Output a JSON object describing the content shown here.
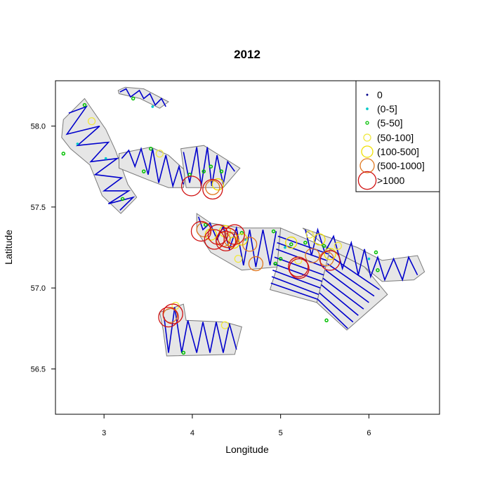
{
  "chart_data": {
    "type": "scatter",
    "title": "2012",
    "xlabel": "Longitude",
    "ylabel": "Latitude",
    "xlim": [
      2.45,
      6.8
    ],
    "ylim": [
      56.22,
      58.28
    ],
    "xticks": [
      3,
      4,
      5,
      6
    ],
    "xtick_labels": [
      "3",
      "4",
      "5",
      "6"
    ],
    "yticks": [
      56.5,
      57.0,
      57.5,
      58.0
    ],
    "ytick_labels": [
      "56.5",
      "57.0",
      "57.5",
      "58.0"
    ],
    "grid": false,
    "legend_position": "top-right",
    "colors": {
      "polygon_fill": "#e6e6e6",
      "polygon_edge": "#7a7a7a",
      "transect": "#0000cc"
    },
    "legend": [
      {
        "label": "0",
        "class": "c0",
        "color": "#00008b"
      },
      {
        "label": "(0-5]",
        "class": "c1",
        "color": "#00c8c8"
      },
      {
        "label": "(5-50]",
        "class": "c2",
        "color": "#00c000"
      },
      {
        "label": "(50-100]",
        "class": "c3",
        "color": "#f0e840"
      },
      {
        "label": "(100-500]",
        "class": "c4",
        "color": "#f0e000"
      },
      {
        "label": "(500-1000]",
        "class": "c5",
        "color": "#e07820"
      },
      {
        "label": ">1000",
        "class": "c6",
        "color": "#d01010"
      }
    ],
    "strata": [
      [
        [
          2.54,
          58.04
        ],
        [
          2.78,
          58.17
        ],
        [
          3.02,
          57.98
        ],
        [
          3.13,
          57.85
        ],
        [
          3.27,
          57.64
        ],
        [
          3.37,
          57.56
        ],
        [
          3.19,
          57.46
        ],
        [
          2.98,
          57.57
        ],
        [
          2.84,
          57.76
        ],
        [
          2.62,
          57.86
        ],
        [
          2.52,
          57.93
        ]
      ],
      [
        [
          3.16,
          58.22
        ],
        [
          3.24,
          58.24
        ],
        [
          3.45,
          58.23
        ],
        [
          3.73,
          58.15
        ],
        [
          3.63,
          58.11
        ],
        [
          3.41,
          58.17
        ],
        [
          3.17,
          58.2
        ]
      ],
      [
        [
          3.17,
          57.83
        ],
        [
          3.53,
          57.87
        ],
        [
          3.73,
          57.82
        ],
        [
          3.93,
          57.72
        ],
        [
          3.9,
          57.62
        ],
        [
          3.73,
          57.62
        ],
        [
          3.49,
          57.67
        ],
        [
          3.17,
          57.74
        ]
      ],
      [
        [
          3.87,
          57.86
        ],
        [
          4.13,
          57.88
        ],
        [
          4.54,
          57.74
        ],
        [
          4.35,
          57.62
        ],
        [
          3.93,
          57.62
        ]
      ],
      [
        [
          4.05,
          57.46
        ],
        [
          4.21,
          57.4
        ],
        [
          4.56,
          57.37
        ],
        [
          5.0,
          57.37
        ],
        [
          4.96,
          57.13
        ],
        [
          4.56,
          57.11
        ],
        [
          4.21,
          57.22
        ],
        [
          4.05,
          57.35
        ]
      ],
      [
        [
          5.0,
          57.37
        ],
        [
          5.56,
          57.24
        ],
        [
          5.41,
          56.91
        ],
        [
          4.88,
          56.99
        ],
        [
          4.96,
          57.13
        ]
      ],
      [
        [
          5.25,
          57.37
        ],
        [
          5.87,
          57.25
        ],
        [
          6.15,
          57.17
        ],
        [
          6.55,
          57.2
        ],
        [
          6.63,
          57.1
        ],
        [
          6.51,
          57.05
        ],
        [
          6.15,
          57.04
        ],
        [
          5.95,
          57.13
        ],
        [
          5.56,
          57.24
        ]
      ],
      [
        [
          5.56,
          57.24
        ],
        [
          5.95,
          57.13
        ],
        [
          6.21,
          56.96
        ],
        [
          5.75,
          56.74
        ],
        [
          5.41,
          56.91
        ]
      ],
      [
        [
          3.63,
          56.85
        ],
        [
          3.9,
          56.9
        ],
        [
          3.93,
          56.8
        ],
        [
          4.37,
          56.79
        ],
        [
          4.56,
          56.76
        ],
        [
          4.48,
          56.59
        ],
        [
          3.71,
          56.58
        ],
        [
          3.67,
          56.74
        ]
      ]
    ],
    "transects": [
      [
        [
          2.6,
          58.08
        ],
        [
          2.8,
          58.12
        ],
        [
          2.58,
          57.95
        ],
        [
          2.95,
          58.0
        ],
        [
          2.7,
          57.88
        ],
        [
          3.05,
          57.9
        ],
        [
          2.85,
          57.78
        ],
        [
          3.15,
          57.8
        ],
        [
          2.9,
          57.7
        ],
        [
          3.2,
          57.68
        ],
        [
          3.0,
          57.6
        ],
        [
          3.28,
          57.6
        ],
        [
          3.05,
          57.52
        ],
        [
          3.33,
          57.56
        ],
        [
          3.18,
          57.48
        ]
      ],
      [
        [
          3.18,
          58.21
        ],
        [
          3.25,
          58.23
        ],
        [
          3.3,
          58.18
        ],
        [
          3.4,
          58.22
        ],
        [
          3.45,
          58.17
        ],
        [
          3.52,
          58.2
        ],
        [
          3.58,
          58.13
        ],
        [
          3.65,
          58.17
        ],
        [
          3.7,
          58.12
        ]
      ],
      [
        [
          3.2,
          57.8
        ],
        [
          3.28,
          57.85
        ],
        [
          3.35,
          57.75
        ],
        [
          3.42,
          57.86
        ],
        [
          3.5,
          57.7
        ],
        [
          3.55,
          57.86
        ],
        [
          3.62,
          57.65
        ],
        [
          3.7,
          57.82
        ],
        [
          3.78,
          57.63
        ],
        [
          3.85,
          57.75
        ],
        [
          3.9,
          57.64
        ]
      ],
      [
        [
          3.9,
          57.84
        ],
        [
          3.97,
          57.65
        ],
        [
          4.05,
          57.87
        ],
        [
          4.1,
          57.63
        ],
        [
          4.17,
          57.87
        ],
        [
          4.22,
          57.63
        ],
        [
          4.28,
          57.82
        ],
        [
          4.35,
          57.64
        ],
        [
          4.4,
          57.78
        ],
        [
          4.48,
          57.72
        ]
      ],
      [
        [
          4.07,
          57.44
        ],
        [
          4.12,
          57.36
        ],
        [
          4.2,
          57.4
        ],
        [
          4.28,
          57.3
        ],
        [
          4.35,
          57.38
        ],
        [
          4.42,
          57.24
        ],
        [
          4.5,
          57.37
        ],
        [
          4.58,
          57.14
        ],
        [
          4.65,
          57.36
        ],
        [
          4.72,
          57.13
        ],
        [
          4.8,
          57.36
        ],
        [
          4.88,
          57.14
        ],
        [
          4.95,
          57.35
        ]
      ],
      [
        [
          4.97,
          57.32
        ],
        [
          5.54,
          57.21
        ]
      ],
      [
        [
          4.96,
          57.28
        ],
        [
          5.52,
          57.17
        ]
      ],
      [
        [
          4.95,
          57.24
        ],
        [
          5.5,
          57.13
        ]
      ],
      [
        [
          4.93,
          57.19
        ],
        [
          5.49,
          57.08
        ]
      ],
      [
        [
          4.92,
          57.15
        ],
        [
          5.47,
          57.04
        ]
      ],
      [
        [
          4.91,
          57.11
        ],
        [
          5.45,
          57.0
        ]
      ],
      [
        [
          4.9,
          57.07
        ],
        [
          5.43,
          56.96
        ]
      ],
      [
        [
          4.89,
          57.03
        ],
        [
          5.42,
          56.93
        ]
      ],
      [
        [
          5.28,
          57.36
        ],
        [
          5.35,
          57.2
        ],
        [
          5.42,
          57.36
        ],
        [
          5.5,
          57.22
        ],
        [
          5.6,
          57.32
        ],
        [
          5.7,
          57.12
        ],
        [
          5.8,
          57.28
        ],
        [
          5.88,
          57.08
        ],
        [
          5.95,
          57.24
        ],
        [
          6.02,
          57.07
        ],
        [
          6.1,
          57.19
        ],
        [
          6.18,
          57.05
        ],
        [
          6.28,
          57.18
        ],
        [
          6.38,
          57.05
        ],
        [
          6.45,
          57.19
        ],
        [
          6.55,
          57.08
        ]
      ],
      [
        [
          5.55,
          57.2
        ],
        [
          6.12,
          56.99
        ]
      ],
      [
        [
          5.53,
          57.15
        ],
        [
          6.06,
          56.95
        ]
      ],
      [
        [
          5.51,
          57.11
        ],
        [
          6.0,
          56.91
        ]
      ],
      [
        [
          5.48,
          57.06
        ],
        [
          5.94,
          56.87
        ]
      ],
      [
        [
          5.46,
          57.02
        ],
        [
          5.88,
          56.83
        ]
      ],
      [
        [
          5.44,
          56.97
        ],
        [
          5.82,
          56.79
        ]
      ],
      [
        [
          5.42,
          56.93
        ],
        [
          5.76,
          56.75
        ]
      ],
      [
        [
          3.68,
          56.82
        ],
        [
          3.73,
          56.6
        ],
        [
          3.8,
          56.88
        ],
        [
          3.88,
          56.6
        ],
        [
          3.95,
          56.8
        ],
        [
          4.05,
          56.6
        ],
        [
          4.12,
          56.79
        ],
        [
          4.2,
          56.6
        ],
        [
          4.27,
          56.79
        ],
        [
          4.35,
          56.6
        ],
        [
          4.42,
          56.78
        ],
        [
          4.5,
          56.62
        ]
      ]
    ],
    "points": [
      {
        "lon": 2.7,
        "lat": 57.89,
        "class": "c1"
      },
      {
        "lon": 3.02,
        "lat": 57.8,
        "class": "c1"
      },
      {
        "lon": 3.55,
        "lat": 58.12,
        "class": "c1"
      },
      {
        "lon": 4.6,
        "lat": 57.3,
        "class": "c1"
      },
      {
        "lon": 5.05,
        "lat": 57.25,
        "class": "c1"
      },
      {
        "lon": 6.0,
        "lat": 57.18,
        "class": "c1"
      },
      {
        "lon": 2.54,
        "lat": 57.83,
        "class": "c2"
      },
      {
        "lon": 2.78,
        "lat": 58.13,
        "class": "c2"
      },
      {
        "lon": 3.33,
        "lat": 58.17,
        "class": "c2"
      },
      {
        "lon": 3.45,
        "lat": 57.72,
        "class": "c2"
      },
      {
        "lon": 3.53,
        "lat": 57.86,
        "class": "c2"
      },
      {
        "lon": 4.13,
        "lat": 57.72,
        "class": "c2"
      },
      {
        "lon": 4.33,
        "lat": 57.72,
        "class": "c2"
      },
      {
        "lon": 4.21,
        "lat": 57.75,
        "class": "c2"
      },
      {
        "lon": 4.15,
        "lat": 57.39,
        "class": "c2"
      },
      {
        "lon": 4.56,
        "lat": 57.34,
        "class": "c2"
      },
      {
        "lon": 4.92,
        "lat": 57.35,
        "class": "c2"
      },
      {
        "lon": 5.12,
        "lat": 57.27,
        "class": "c2"
      },
      {
        "lon": 5.49,
        "lat": 57.26,
        "class": "c2"
      },
      {
        "lon": 5.28,
        "lat": 57.28,
        "class": "c2"
      },
      {
        "lon": 4.94,
        "lat": 57.15,
        "class": "c2"
      },
      {
        "lon": 6.1,
        "lat": 57.11,
        "class": "c2"
      },
      {
        "lon": 6.08,
        "lat": 57.22,
        "class": "c2"
      },
      {
        "lon": 5.52,
        "lat": 56.8,
        "class": "c2"
      },
      {
        "lon": 3.9,
        "lat": 56.6,
        "class": "c2"
      },
      {
        "lon": 3.21,
        "lat": 57.55,
        "class": "c2"
      },
      {
        "lon": 5.0,
        "lat": 57.18,
        "class": "c2"
      },
      {
        "lon": 3.97,
        "lat": 57.7,
        "class": "c2"
      },
      {
        "lon": 3.63,
        "lat": 57.83,
        "class": "c3"
      },
      {
        "lon": 4.52,
        "lat": 57.18,
        "class": "c3"
      },
      {
        "lon": 5.65,
        "lat": 57.26,
        "class": "c3"
      },
      {
        "lon": 4.37,
        "lat": 56.77,
        "class": "c3"
      },
      {
        "lon": 3.81,
        "lat": 56.89,
        "class": "c3"
      },
      {
        "lon": 2.86,
        "lat": 58.03,
        "class": "c3"
      },
      {
        "lon": 5.33,
        "lat": 57.33,
        "class": "c3"
      },
      {
        "lon": 5.2,
        "lat": 57.17,
        "class": "c3"
      },
      {
        "lon": 4.37,
        "lat": 57.35,
        "class": "c4"
      },
      {
        "lon": 4.47,
        "lat": 57.28,
        "class": "c4"
      },
      {
        "lon": 5.12,
        "lat": 57.28,
        "class": "c4"
      },
      {
        "lon": 5.44,
        "lat": 57.3,
        "class": "c4"
      },
      {
        "lon": 5.56,
        "lat": 57.21,
        "class": "c4"
      },
      {
        "lon": 4.29,
        "lat": 57.64,
        "class": "c4"
      },
      {
        "lon": 4.56,
        "lat": 57.3,
        "class": "c4"
      },
      {
        "lon": 4.21,
        "lat": 57.33,
        "class": "c4"
      },
      {
        "lon": 4.13,
        "lat": 57.36,
        "class": "c5"
      },
      {
        "lon": 4.35,
        "lat": 57.3,
        "class": "c5"
      },
      {
        "lon": 4.65,
        "lat": 57.27,
        "class": "c5"
      },
      {
        "lon": 4.72,
        "lat": 57.15,
        "class": "c5"
      },
      {
        "lon": 5.36,
        "lat": 57.2,
        "class": "c5"
      },
      {
        "lon": 5.52,
        "lat": 57.18,
        "class": "c5"
      },
      {
        "lon": 3.75,
        "lat": 56.83,
        "class": "c5"
      },
      {
        "lon": 4.23,
        "lat": 57.62,
        "class": "c5"
      },
      {
        "lon": 4.44,
        "lat": 57.3,
        "class": "c5"
      },
      {
        "lon": 3.99,
        "lat": 57.63,
        "class": "c6"
      },
      {
        "lon": 4.23,
        "lat": 57.61,
        "class": "c6"
      },
      {
        "lon": 4.1,
        "lat": 57.35,
        "class": "c6"
      },
      {
        "lon": 4.29,
        "lat": 57.33,
        "class": "c6"
      },
      {
        "lon": 4.25,
        "lat": 57.3,
        "class": "c6"
      },
      {
        "lon": 4.4,
        "lat": 57.31,
        "class": "c6"
      },
      {
        "lon": 4.48,
        "lat": 57.33,
        "class": "c6"
      },
      {
        "lon": 4.38,
        "lat": 57.29,
        "class": "c6"
      },
      {
        "lon": 5.2,
        "lat": 57.13,
        "class": "c6"
      },
      {
        "lon": 5.21,
        "lat": 57.12,
        "class": "c6"
      },
      {
        "lon": 5.56,
        "lat": 57.17,
        "class": "c6"
      },
      {
        "lon": 3.73,
        "lat": 56.82,
        "class": "c6"
      },
      {
        "lon": 3.78,
        "lat": 56.84,
        "class": "c6"
      }
    ]
  }
}
